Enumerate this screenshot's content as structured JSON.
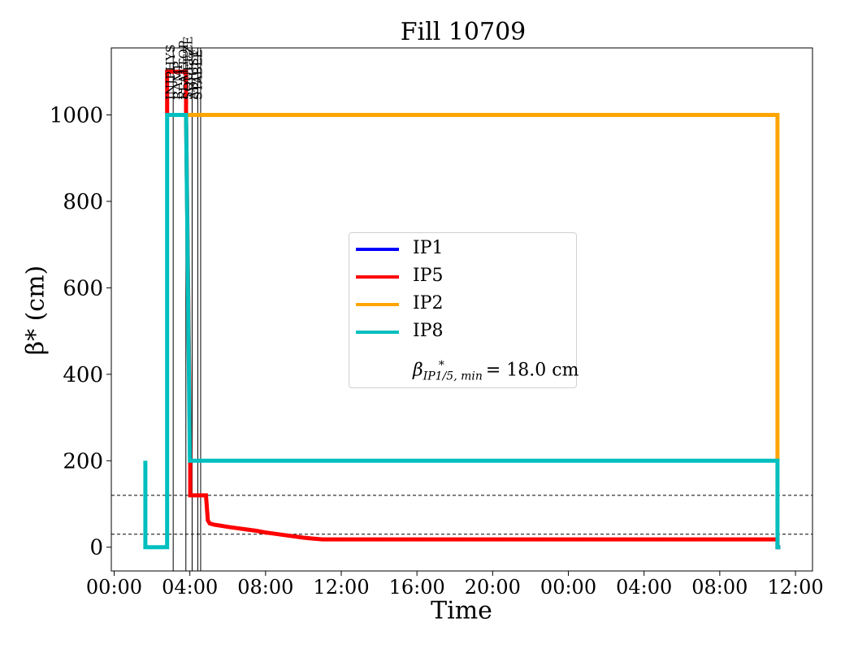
{
  "chart_data": {
    "type": "line",
    "title": "Fill 10709",
    "xlabel": "Time",
    "ylabel": "β* (cm)",
    "x_unit": "hours",
    "xlim": [
      -0.15,
      36.9
    ],
    "ylim": [
      -55,
      1155
    ],
    "x_ticks": [
      {
        "value": 0,
        "label": "00:00"
      },
      {
        "value": 4,
        "label": "04:00"
      },
      {
        "value": 8,
        "label": "08:00"
      },
      {
        "value": 12,
        "label": "12:00"
      },
      {
        "value": 16,
        "label": "16:00"
      },
      {
        "value": 20,
        "label": "20:00"
      },
      {
        "value": 24,
        "label": "00:00"
      },
      {
        "value": 28,
        "label": "04:00"
      },
      {
        "value": 32,
        "label": "08:00"
      },
      {
        "value": 36,
        "label": "12:00"
      }
    ],
    "y_ticks": [
      0,
      200,
      400,
      600,
      800,
      1000
    ],
    "legend_position": "center",
    "series": [
      {
        "name": "IP1",
        "color": "#0000ff",
        "x": [],
        "y": []
      },
      {
        "name": "IP5",
        "color": "#ff0000",
        "x": [
          2.8,
          2.8,
          3.8,
          3.8,
          4.02,
          4.02,
          4.22,
          4.22,
          4.55,
          4.6,
          4.85,
          4.95,
          5.05,
          5.3,
          5.6,
          6.0,
          6.5,
          7.0,
          7.5,
          8.0,
          8.5,
          9.0,
          9.5,
          10.0,
          10.5,
          11.0,
          35.05,
          35.05,
          35.2
        ],
        "y": [
          1000,
          1100,
          1100,
          1000,
          200,
          120,
          120,
          120,
          120,
          120,
          120,
          62,
          55,
          52,
          50,
          47,
          44,
          41,
          38,
          34,
          31,
          28,
          25,
          22,
          20,
          18,
          18,
          0,
          0
        ]
      },
      {
        "name": "IP2",
        "color": "#ffa500",
        "x": [
          3.8,
          35.05,
          35.05
        ],
        "y": [
          1000,
          1000,
          200
        ]
      },
      {
        "name": "IP8",
        "color": "#00bfbf",
        "x": [
          1.65,
          1.65,
          1.65,
          2.8,
          2.8,
          3.8,
          3.8,
          4.0,
          4.0,
          35.05,
          35.05,
          35.2
        ],
        "y": [
          200,
          0,
          0,
          0,
          1000,
          1000,
          1000,
          200,
          200,
          200,
          0,
          0
        ]
      }
    ],
    "hlines": [
      {
        "y": 120
      },
      {
        "y": 30
      }
    ],
    "vlines": [
      {
        "x": 3.12
      },
      {
        "x": 3.79
      },
      {
        "x": 4.12
      },
      {
        "x": 4.42
      },
      {
        "x": 4.57
      }
    ],
    "phase_labels": [
      {
        "x": 2.98,
        "text": "INJPHYS"
      },
      {
        "x": 3.38,
        "text": "RAMP"
      },
      {
        "x": 3.67,
        "text": "FLATTOP"
      },
      {
        "x": 3.9,
        "text": "SQUEEZE"
      },
      {
        "x": 4.2,
        "text": "ADJUST"
      },
      {
        "x": 4.42,
        "text": "STABLE"
      }
    ],
    "legend_note": {
      "prefix": "β",
      "sup": "*",
      "sub": "IP1/5, min",
      "text": " = 18.0 cm"
    }
  }
}
